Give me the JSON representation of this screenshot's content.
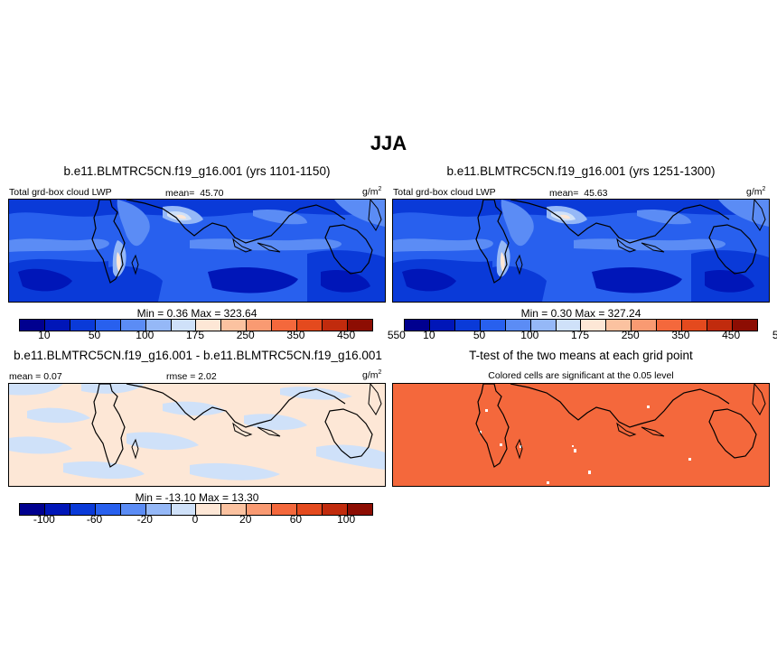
{
  "season_title": "JJA",
  "panels": {
    "case1": {
      "title": "b.e11.BLMTRC5CN.f19_g16.001 (yrs 1101-1150)",
      "variable": "Total grd-box cloud LWP",
      "mean_label": "mean=",
      "mean_value": "45.70",
      "units": "g/m",
      "units_sup": "2",
      "min_max": "Min =   0.36 Max = 323.64"
    },
    "case2": {
      "title": "b.e11.BLMTRC5CN.f19_g16.001 (yrs 1251-1300)",
      "variable": "Total grd-box cloud LWP",
      "mean_label": "mean=",
      "mean_value": "45.63",
      "units": "g/m",
      "units_sup": "2",
      "min_max": "Min =   0.30 Max = 327.24"
    },
    "difference": {
      "title": "b.e11.BLMTRC5CN.f19_g16.001 - b.e11.BLMTRC5CN.f19_g16.001",
      "mean_text": "mean =   0.07",
      "rmse_text": "rmse =   2.02",
      "units": "g/m",
      "units_sup": "2",
      "min_max": "Min = -13.10 Max =  13.30"
    },
    "ttest": {
      "title": "T-test of the two means at each grid point",
      "subtitle": "Colored cells are significant at the 0.05 level",
      "fill_color": "#f4683c"
    }
  },
  "colorbar_abs": {
    "colors": [
      "#00008f",
      "#0016b8",
      "#0a3ad8",
      "#2860ee",
      "#5b8cf5",
      "#95b8f7",
      "#cfe1f9",
      "#fde7d6",
      "#fbc2a0",
      "#f99a72",
      "#f4683c",
      "#e44a1e",
      "#c12b0d",
      "#8d0d03"
    ],
    "labels": [
      "10",
      "50",
      "100",
      "175",
      "250",
      "350",
      "450",
      "550"
    ]
  },
  "colorbar_diff": {
    "colors": [
      "#00008f",
      "#0016b8",
      "#0a3ad8",
      "#2860ee",
      "#5b8cf5",
      "#95b8f7",
      "#cfe1f9",
      "#fde7d6",
      "#fbc2a0",
      "#f99a72",
      "#f4683c",
      "#e44a1e",
      "#c12b0d",
      "#8d0d03"
    ],
    "labels": [
      "-100",
      "-60",
      "-20",
      "0",
      "20",
      "60",
      "100"
    ]
  }
}
